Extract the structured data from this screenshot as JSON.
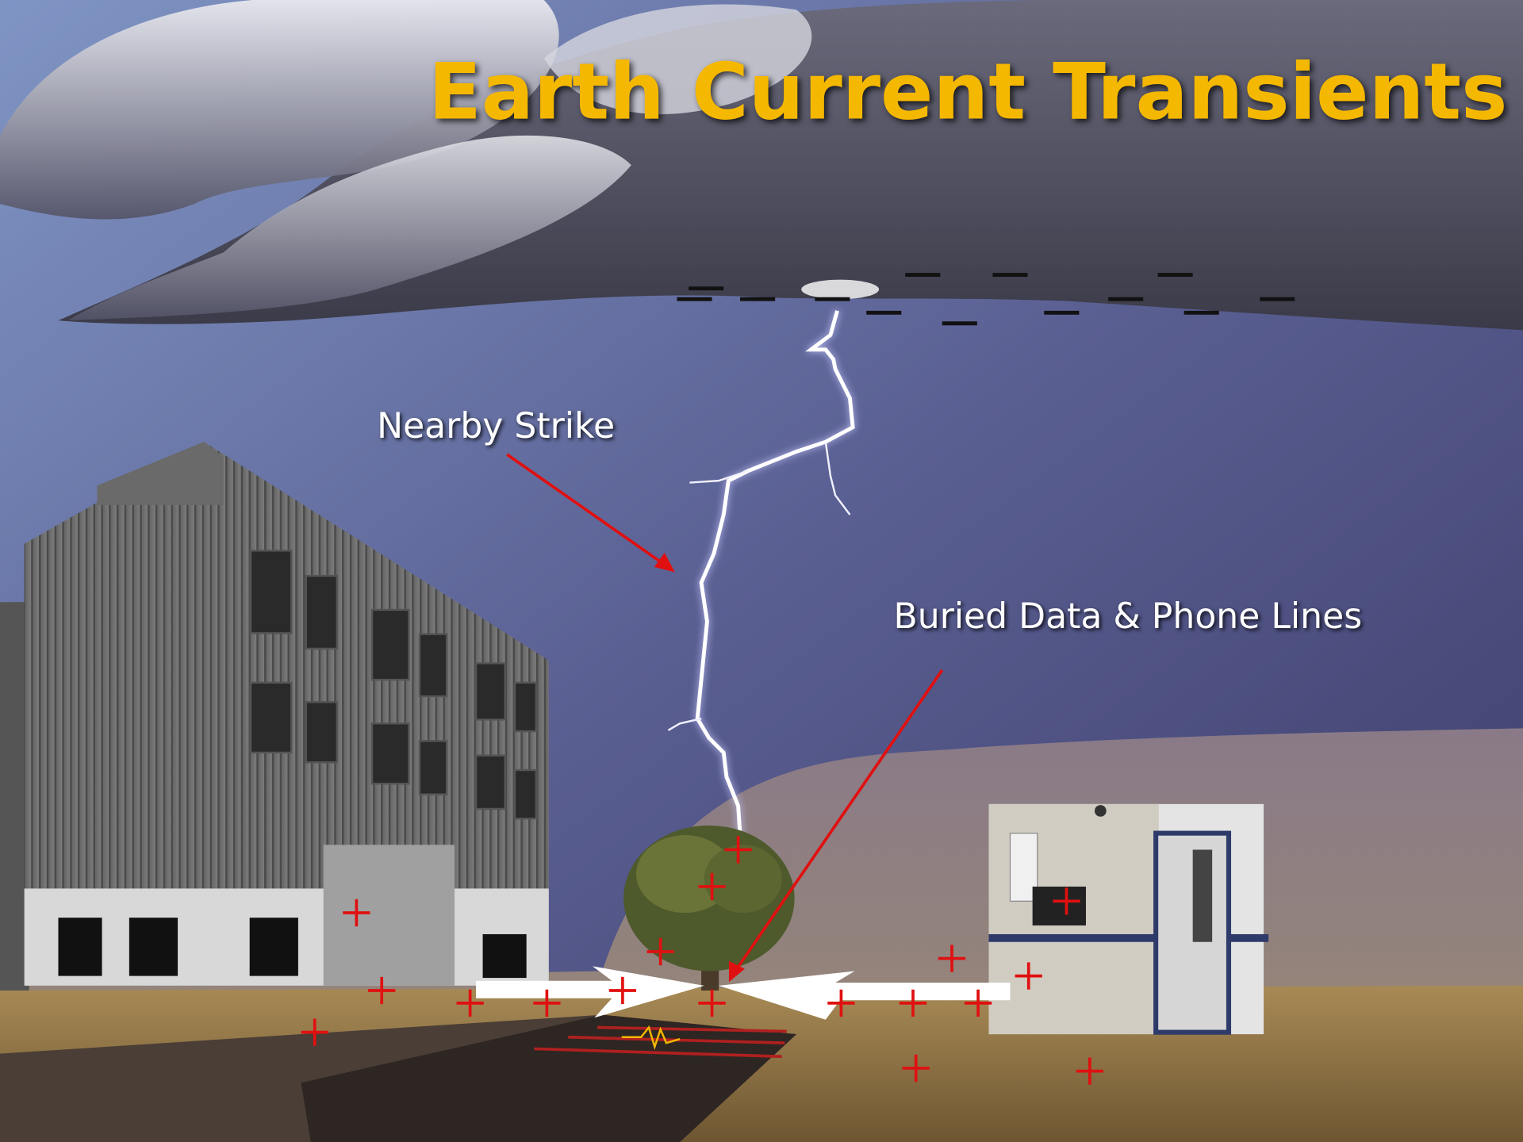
{
  "header": {
    "title": "Earth Current Transients"
  },
  "labels": [
    {
      "text": "Nearby Strike"
    },
    {
      "text": "Buried Data & Phone Lines"
    }
  ]
}
